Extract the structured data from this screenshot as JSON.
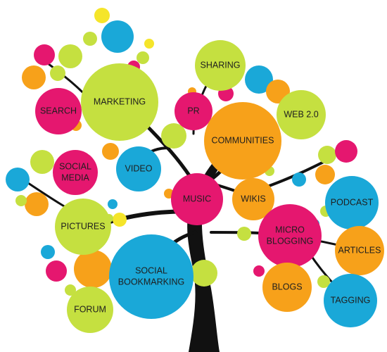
{
  "nodes": [
    {
      "lines": [
        "SEARCH"
      ]
    },
    {
      "lines": [
        "MARKETING"
      ]
    },
    {
      "lines": [
        "SHARING"
      ]
    },
    {
      "lines": [
        "PR"
      ]
    },
    {
      "lines": [
        "WEB 2.0"
      ]
    },
    {
      "lines": [
        "COMMUNITIES"
      ]
    },
    {
      "lines": [
        "SOCIAL",
        "MEDIA"
      ]
    },
    {
      "lines": [
        "VIDEO"
      ]
    },
    {
      "lines": [
        "MUSIC"
      ]
    },
    {
      "lines": [
        "WIKIS"
      ]
    },
    {
      "lines": [
        "PODCAST"
      ]
    },
    {
      "lines": [
        "PICTURES"
      ]
    },
    {
      "lines": [
        "MICRO",
        "BLOGGING"
      ]
    },
    {
      "lines": [
        "ARTICLES"
      ]
    },
    {
      "lines": [
        "SOCIAL",
        "BOOKMARKING"
      ]
    },
    {
      "lines": [
        "BLOGS"
      ]
    },
    {
      "lines": [
        "FORUM"
      ]
    },
    {
      "lines": [
        "TAGGING"
      ]
    }
  ]
}
